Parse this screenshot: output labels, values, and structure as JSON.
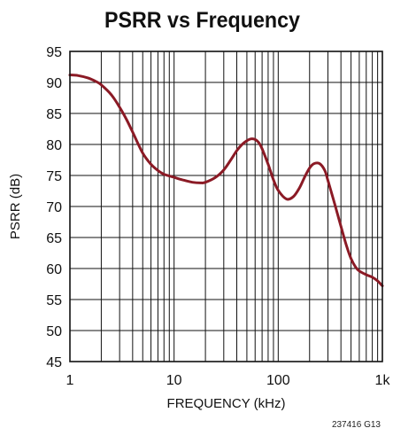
{
  "chart_data": {
    "type": "line",
    "title": "PSRR vs Frequency",
    "xlabel": "FREQUENCY (kHz)",
    "ylabel": "PSRR (dB)",
    "x_scale": "log",
    "xlim": [
      1,
      1000
    ],
    "ylim": [
      45,
      95
    ],
    "x_ticks": [
      {
        "value": 1,
        "label": "1"
      },
      {
        "value": 10,
        "label": "10"
      },
      {
        "value": 100,
        "label": "100"
      },
      {
        "value": 1000,
        "label": "1k"
      }
    ],
    "y_ticks": [
      45,
      50,
      55,
      60,
      65,
      70,
      75,
      80,
      85,
      90,
      95
    ],
    "grid": true,
    "line_color": "#8b1a25",
    "series": [
      {
        "x": [
          1,
          1.2,
          1.5,
          1.8,
          2,
          2.5,
          3,
          3.5,
          4,
          5,
          6,
          7,
          8,
          10,
          12,
          15,
          18,
          20,
          25,
          30,
          35,
          40,
          45,
          50,
          55,
          60,
          65,
          70,
          80,
          90,
          100,
          120,
          140,
          160,
          180,
          200,
          220,
          250,
          280,
          300,
          350,
          400,
          450,
          500,
          550,
          600,
          700,
          800,
          900,
          1000
        ],
        "y": [
          91.2,
          91.1,
          90.7,
          90.1,
          89.6,
          88.0,
          86.0,
          84.0,
          82.0,
          78.6,
          76.8,
          75.8,
          75.2,
          74.7,
          74.3,
          73.9,
          73.8,
          73.9,
          74.7,
          75.9,
          77.5,
          79.0,
          80.0,
          80.6,
          80.9,
          80.8,
          80.3,
          79.3,
          76.8,
          74.3,
          72.6,
          71.2,
          71.6,
          73.0,
          74.8,
          76.2,
          76.9,
          76.9,
          75.8,
          74.2,
          70.3,
          66.8,
          63.8,
          61.6,
          60.3,
          59.6,
          59.0,
          58.6,
          58.0,
          57.2
        ]
      }
    ]
  },
  "figure_code": "237416 G13"
}
